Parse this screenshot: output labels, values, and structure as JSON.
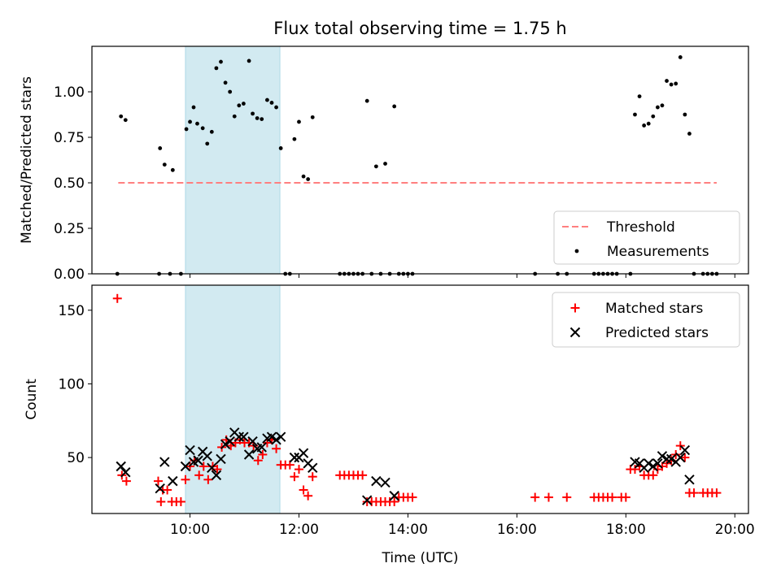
{
  "chart_data": [
    {
      "type": "scatter",
      "title": "Flux total observing time = 1.75 h",
      "ylabel": "Matched/Predicted stars",
      "xlabel": "",
      "xlim": [
        "08:12",
        "20:15"
      ],
      "ylim": [
        0,
        1.25
      ],
      "yticks": [
        "0.00",
        "0.25",
        "0.50",
        "0.75",
        "1.00"
      ],
      "grid": false,
      "legend_position": "bottom-right",
      "highlight_span": {
        "start": "09:55",
        "end": "11:39",
        "color": "#add8e6"
      },
      "threshold": {
        "name": "Threshold",
        "value": 0.5,
        "x_start": "08:41",
        "x_end": "19:40",
        "color": "#ff7f7f",
        "style": "dashed"
      },
      "series": [
        {
          "name": "Measurements",
          "color": "#000000",
          "marker": "dot",
          "points": [
            [
              "08:40",
              0
            ],
            [
              "08:44",
              0.865
            ],
            [
              "08:49",
              0.845
            ],
            [
              "09:26",
              0
            ],
            [
              "09:27",
              0.69
            ],
            [
              "09:32",
              0.6
            ],
            [
              "09:38",
              0
            ],
            [
              "09:41",
              0.57
            ],
            [
              "09:50",
              0
            ],
            [
              "09:56",
              0.795
            ],
            [
              "10:00",
              0.835
            ],
            [
              "10:04",
              0.915
            ],
            [
              "10:08",
              0.825
            ],
            [
              "10:14",
              0.8
            ],
            [
              "10:19",
              0.715
            ],
            [
              "10:24",
              0.78
            ],
            [
              "10:29",
              1.13
            ],
            [
              "10:34",
              1.165
            ],
            [
              "10:39",
              1.05
            ],
            [
              "10:44",
              1.0
            ],
            [
              "10:49",
              0.865
            ],
            [
              "10:54",
              0.925
            ],
            [
              "10:59",
              0.935
            ],
            [
              "11:05",
              1.17
            ],
            [
              "11:09",
              0.88
            ],
            [
              "11:14",
              0.855
            ],
            [
              "11:19",
              0.85
            ],
            [
              "11:25",
              0.955
            ],
            [
              "11:30",
              0.94
            ],
            [
              "11:35",
              0.915
            ],
            [
              "11:40",
              0.69
            ],
            [
              "11:45",
              0
            ],
            [
              "11:50",
              0
            ],
            [
              "11:55",
              0.74
            ],
            [
              "12:00",
              0.835
            ],
            [
              "12:05",
              0.535
            ],
            [
              "12:10",
              0.52
            ],
            [
              "12:15",
              0.86
            ],
            [
              "12:45",
              0
            ],
            [
              "12:50",
              0
            ],
            [
              "12:55",
              0
            ],
            [
              "13:00",
              0
            ],
            [
              "13:05",
              0
            ],
            [
              "13:10",
              0
            ],
            [
              "13:15",
              0.95
            ],
            [
              "13:20",
              0
            ],
            [
              "13:25",
              0.59
            ],
            [
              "13:30",
              0
            ],
            [
              "13:35",
              0.605
            ],
            [
              "13:40",
              0
            ],
            [
              "13:45",
              0.92
            ],
            [
              "13:50",
              0
            ],
            [
              "13:55",
              0
            ],
            [
              "14:00",
              0
            ],
            [
              "14:05",
              0
            ],
            [
              "16:20",
              0
            ],
            [
              "16:45",
              0
            ],
            [
              "16:55",
              0
            ],
            [
              "17:25",
              0
            ],
            [
              "17:30",
              0
            ],
            [
              "17:35",
              0
            ],
            [
              "17:40",
              0
            ],
            [
              "17:45",
              0
            ],
            [
              "17:50",
              0
            ],
            [
              "18:05",
              0
            ],
            [
              "18:10",
              0.875
            ],
            [
              "18:15",
              0.975
            ],
            [
              "18:20",
              0.815
            ],
            [
              "18:25",
              0.825
            ],
            [
              "18:30",
              0.865
            ],
            [
              "18:35",
              0.915
            ],
            [
              "18:40",
              0.925
            ],
            [
              "18:45",
              1.06
            ],
            [
              "18:50",
              1.04
            ],
            [
              "18:55",
              1.045
            ],
            [
              "19:00",
              1.19
            ],
            [
              "19:05",
              0.875
            ],
            [
              "19:10",
              0.77
            ],
            [
              "19:15",
              0
            ],
            [
              "19:25",
              0
            ],
            [
              "19:30",
              0
            ],
            [
              "19:35",
              0
            ],
            [
              "19:40",
              0
            ]
          ]
        }
      ],
      "legend": [
        {
          "label": "Threshold",
          "kind": "dash",
          "color": "#ff7f7f"
        },
        {
          "label": "Measurements",
          "kind": "dot",
          "color": "#000000"
        }
      ]
    },
    {
      "type": "scatter",
      "title": "",
      "xlabel": "Time (UTC)",
      "ylabel": "Count",
      "xlim": [
        "08:12",
        "20:15"
      ],
      "ylim": [
        12,
        167
      ],
      "yticks": [
        "50",
        "100",
        "150"
      ],
      "xticks": [
        "10:00",
        "12:00",
        "14:00",
        "16:00",
        "18:00",
        "20:00"
      ],
      "grid": false,
      "legend_position": "top-right",
      "highlight_span": {
        "start": "09:55",
        "end": "11:39",
        "color": "#add8e6"
      },
      "series": [
        {
          "name": "Matched stars",
          "color": "#ff0000",
          "marker": "plus",
          "points": [
            [
              "08:40",
              158
            ],
            [
              "08:45",
              38
            ],
            [
              "08:50",
              34
            ],
            [
              "09:25",
              34
            ],
            [
              "09:28",
              20
            ],
            [
              "09:30",
              28
            ],
            [
              "09:35",
              28
            ],
            [
              "09:40",
              20
            ],
            [
              "09:45",
              20
            ],
            [
              "09:50",
              20
            ],
            [
              "09:55",
              35
            ],
            [
              "10:00",
              44
            ],
            [
              "10:05",
              48
            ],
            [
              "10:10",
              38
            ],
            [
              "10:15",
              44
            ],
            [
              "10:20",
              35
            ],
            [
              "10:25",
              44
            ],
            [
              "10:30",
              42
            ],
            [
              "10:35",
              57
            ],
            [
              "10:40",
              62
            ],
            [
              "10:45",
              58
            ],
            [
              "10:50",
              60
            ],
            [
              "10:55",
              62
            ],
            [
              "11:00",
              60
            ],
            [
              "11:05",
              60
            ],
            [
              "11:10",
              58
            ],
            [
              "11:15",
              48
            ],
            [
              "11:20",
              52
            ],
            [
              "11:25",
              60
            ],
            [
              "11:30",
              62
            ],
            [
              "11:35",
              56
            ],
            [
              "11:40",
              45
            ],
            [
              "11:45",
              45
            ],
            [
              "11:50",
              45
            ],
            [
              "11:55",
              37
            ],
            [
              "12:00",
              42
            ],
            [
              "12:05",
              28
            ],
            [
              "12:10",
              24
            ],
            [
              "12:15",
              37
            ],
            [
              "12:45",
              38
            ],
            [
              "12:50",
              38
            ],
            [
              "12:55",
              38
            ],
            [
              "13:00",
              38
            ],
            [
              "13:05",
              38
            ],
            [
              "13:10",
              38
            ],
            [
              "13:15",
              20
            ],
            [
              "13:20",
              20
            ],
            [
              "13:25",
              20
            ],
            [
              "13:30",
              20
            ],
            [
              "13:35",
              20
            ],
            [
              "13:40",
              20
            ],
            [
              "13:45",
              20
            ],
            [
              "13:50",
              23
            ],
            [
              "13:55",
              23
            ],
            [
              "14:00",
              23
            ],
            [
              "14:05",
              23
            ],
            [
              "16:20",
              23
            ],
            [
              "16:35",
              23
            ],
            [
              "16:55",
              23
            ],
            [
              "17:25",
              23
            ],
            [
              "17:30",
              23
            ],
            [
              "17:35",
              23
            ],
            [
              "17:40",
              23
            ],
            [
              "17:45",
              23
            ],
            [
              "17:55",
              23
            ],
            [
              "18:00",
              23
            ],
            [
              "18:05",
              42
            ],
            [
              "18:10",
              42
            ],
            [
              "18:15",
              44
            ],
            [
              "18:20",
              38
            ],
            [
              "18:25",
              38
            ],
            [
              "18:30",
              38
            ],
            [
              "18:35",
              42
            ],
            [
              "18:40",
              44
            ],
            [
              "18:45",
              46
            ],
            [
              "18:50",
              48
            ],
            [
              "18:55",
              52
            ],
            [
              "19:00",
              58
            ],
            [
              "19:05",
              50
            ],
            [
              "19:10",
              26
            ],
            [
              "19:15",
              26
            ],
            [
              "19:25",
              26
            ],
            [
              "19:30",
              26
            ],
            [
              "19:35",
              26
            ],
            [
              "19:40",
              26
            ]
          ]
        },
        {
          "name": "Predicted stars",
          "color": "#000000",
          "marker": "x",
          "points": [
            [
              "08:44",
              44
            ],
            [
              "08:49",
              40
            ],
            [
              "09:27",
              29
            ],
            [
              "09:32",
              47
            ],
            [
              "09:41",
              34
            ],
            [
              "09:55",
              44
            ],
            [
              "10:00",
              55
            ],
            [
              "10:04",
              47
            ],
            [
              "10:09",
              48
            ],
            [
              "10:14",
              54
            ],
            [
              "10:19",
              51
            ],
            [
              "10:24",
              43
            ],
            [
              "10:29",
              38
            ],
            [
              "10:34",
              49
            ],
            [
              "10:39",
              59
            ],
            [
              "10:44",
              61
            ],
            [
              "10:49",
              67
            ],
            [
              "10:54",
              64
            ],
            [
              "10:59",
              64
            ],
            [
              "11:05",
              52
            ],
            [
              "11:09",
              61
            ],
            [
              "11:14",
              56
            ],
            [
              "11:19",
              57
            ],
            [
              "11:25",
              63
            ],
            [
              "11:30",
              64
            ],
            [
              "11:35",
              62
            ],
            [
              "11:40",
              64
            ],
            [
              "11:55",
              50
            ],
            [
              "12:00",
              50
            ],
            [
              "12:05",
              53
            ],
            [
              "12:10",
              46
            ],
            [
              "12:15",
              43
            ],
            [
              "13:15",
              21
            ],
            [
              "13:25",
              34
            ],
            [
              "13:35",
              33
            ],
            [
              "13:45",
              24
            ],
            [
              "18:10",
              47
            ],
            [
              "18:15",
              46
            ],
            [
              "18:20",
              43
            ],
            [
              "18:25",
              46
            ],
            [
              "18:30",
              44
            ],
            [
              "18:35",
              46
            ],
            [
              "18:40",
              51
            ],
            [
              "18:45",
              49
            ],
            [
              "18:50",
              49
            ],
            [
              "18:55",
              47
            ],
            [
              "19:00",
              50
            ],
            [
              "19:05",
              55
            ],
            [
              "19:10",
              35
            ]
          ]
        }
      ],
      "legend": [
        {
          "label": "Matched stars",
          "kind": "plus",
          "color": "#ff0000"
        },
        {
          "label": "Predicted stars",
          "kind": "x",
          "color": "#000000"
        }
      ]
    }
  ]
}
